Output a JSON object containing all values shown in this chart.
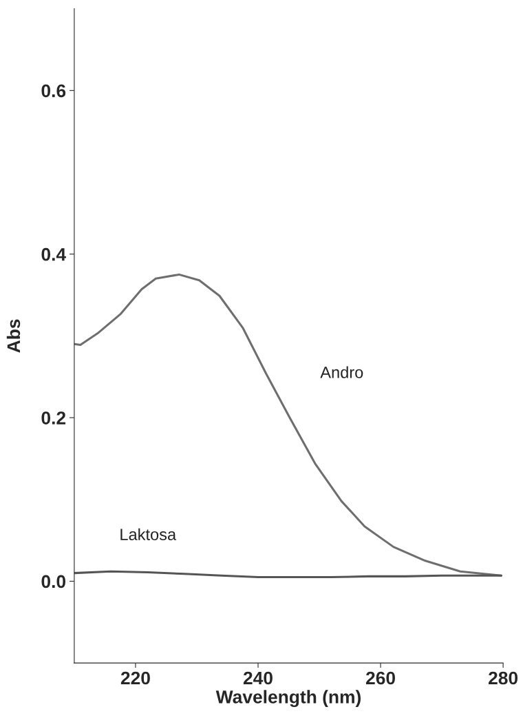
{
  "chart_data": {
    "type": "line",
    "xlabel": "Wavelength (nm)",
    "ylabel": "Abs",
    "xlim": [
      210,
      280
    ],
    "xticks": [
      220,
      240,
      260,
      280
    ],
    "ylim": [
      -0.1,
      0.7
    ],
    "yticks": [
      {
        "value": 0,
        "label": "0.0"
      },
      {
        "value": 0.2,
        "label": "0.2"
      },
      {
        "value": 0.4,
        "label": "0.4"
      },
      {
        "value": 0.6,
        "label": "0.6"
      }
    ],
    "grid": false,
    "marker": "none",
    "line_style": "solid",
    "series": [
      {
        "name": "Andro",
        "color": "#6e6e6e",
        "x": [
          210,
          211,
          213.8,
          217.6,
          221,
          223.3,
          227.1,
          230.4,
          233.7,
          237.5,
          241.3,
          245.1,
          249.3,
          253.6,
          257.4,
          262.1,
          267.3,
          273,
          279.7
        ],
        "values": [
          0.29,
          0.289,
          0.303,
          0.327,
          0.357,
          0.37,
          0.375,
          0.368,
          0.349,
          0.31,
          0.254,
          0.201,
          0.144,
          0.098,
          0.067,
          0.042,
          0.025,
          0.012,
          0.007
        ]
      },
      {
        "name": "Laktosa",
        "color": "#555555",
        "x": [
          210,
          216,
          222,
          228,
          234,
          240,
          246,
          252,
          258,
          264,
          270,
          276,
          279.7
        ],
        "values": [
          0.01,
          0.012,
          0.011,
          0.009,
          0.007,
          0.005,
          0.005,
          0.005,
          0.006,
          0.006,
          0.007,
          0.007,
          0.007
        ]
      }
    ]
  }
}
